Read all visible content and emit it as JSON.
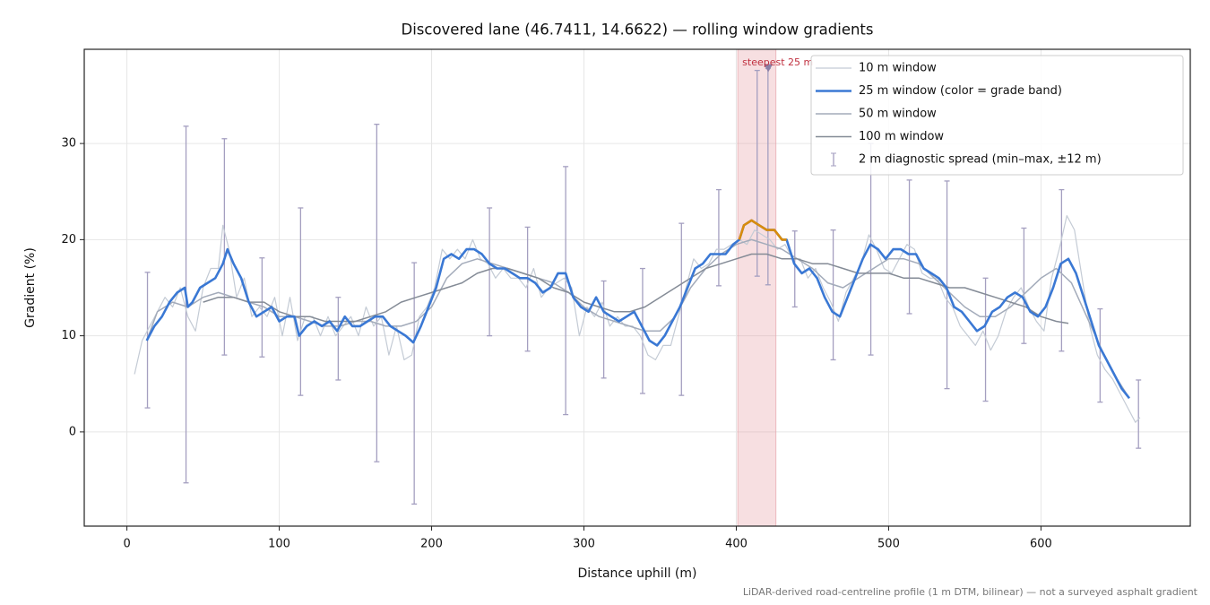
{
  "chart_data": {
    "type": "line",
    "title": "Discovered lane (46.7411, 14.6622) — rolling window gradients",
    "xlabel": "Distance uphill (m)",
    "ylabel": "Gradient (%)",
    "footnote": "LiDAR-derived road-centreline profile (1 m DTM, bilinear) — not a surveyed asphalt gradient",
    "xlim": [
      -28,
      698
    ],
    "ylim": [
      -9.8,
      39.8
    ],
    "xticks": [
      0,
      100,
      200,
      300,
      400,
      500,
      600
    ],
    "yticks": [
      0,
      10,
      20,
      30
    ],
    "grid": true,
    "legend": "upper right",
    "highlight": {
      "label": "steepest 25 m",
      "x0": 401,
      "x1": 426,
      "marker_x": 421,
      "marker_y": 37.8,
      "color": "#e7a3aa",
      "text_color": "#c0303f",
      "marker_color": "#8a7fa6"
    },
    "grade_band": {
      "threshold": 20,
      "color": "#d98c0c"
    },
    "series": [
      {
        "name": "10 m window",
        "color": "#c4cbd5",
        "linewidth": 1.2,
        "x": [
          5,
          10,
          15,
          20,
          25,
          30,
          35,
          40,
          45,
          50,
          55,
          60,
          63,
          67,
          72,
          77,
          82,
          87,
          92,
          97,
          102,
          107,
          112,
          117,
          122,
          127,
          132,
          137,
          142,
          147,
          152,
          157,
          162,
          167,
          172,
          177,
          182,
          187,
          192,
          197,
          202,
          207,
          212,
          217,
          222,
          227,
          232,
          237,
          242,
          247,
          252,
          257,
          262,
          267,
          272,
          277,
          282,
          287,
          292,
          297,
          302,
          307,
          312,
          317,
          322,
          327,
          332,
          337,
          342,
          347,
          352,
          357,
          362,
          367,
          372,
          377,
          382,
          387,
          392,
          397,
          402,
          407,
          412,
          417,
          422,
          427,
          432,
          437,
          442,
          447,
          452,
          457,
          462,
          467,
          472,
          477,
          482,
          487,
          492,
          497,
          502,
          507,
          512,
          517,
          522,
          527,
          532,
          537,
          542,
          547,
          552,
          557,
          562,
          567,
          572,
          577,
          582,
          587,
          592,
          597,
          602,
          607,
          612,
          617,
          622,
          627,
          632,
          637,
          642,
          647,
          652,
          657,
          662,
          665
        ],
        "values": [
          6,
          9.5,
          11,
          12.5,
          14,
          13,
          15,
          12,
          10.5,
          15,
          17,
          17,
          21.5,
          19,
          14,
          16,
          12,
          13,
          12,
          14,
          10,
          14,
          9.5,
          12,
          12,
          10,
          12,
          10,
          11,
          12,
          10,
          13,
          11,
          12,
          8,
          11,
          7.5,
          8,
          12,
          13,
          15,
          19,
          18,
          19,
          18,
          20,
          18,
          17.5,
          16,
          17,
          16,
          16,
          15,
          17,
          14,
          15,
          15.5,
          16,
          15,
          10,
          13,
          12,
          13.5,
          11,
          12,
          11,
          11,
          10,
          8,
          7.5,
          9,
          9,
          12,
          15,
          18,
          17,
          17.5,
          19,
          19,
          19.5,
          20,
          19.5,
          21,
          20.5,
          20,
          19,
          19.5,
          18,
          18,
          16,
          17,
          15,
          13.5,
          11.5,
          14.5,
          16,
          17.5,
          20.5,
          19,
          17,
          16.5,
          18,
          19.5,
          19,
          16.5,
          16,
          16,
          14,
          13,
          11,
          10,
          9,
          10.5,
          8.5,
          10,
          12.5,
          14,
          15,
          13,
          11.5,
          10.5,
          16,
          19,
          22.5,
          21,
          16,
          11,
          8,
          6.5,
          5.5,
          4,
          2.5,
          1,
          1.5
        ]
      },
      {
        "name": "25 m window (color = grade band)",
        "color": "#3a78d4",
        "linewidth": 2.6,
        "x": [
          13,
          18,
          23,
          28,
          33,
          38,
          40,
          43,
          48,
          53,
          58,
          63,
          66,
          70,
          75,
          80,
          85,
          90,
          95,
          100,
          105,
          110,
          113,
          118,
          123,
          128,
          133,
          138,
          143,
          148,
          153,
          158,
          163,
          168,
          173,
          178,
          183,
          188,
          193,
          198,
          203,
          208,
          213,
          218,
          223,
          228,
          233,
          238,
          243,
          248,
          253,
          258,
          263,
          268,
          273,
          278,
          283,
          288,
          293,
          298,
          303,
          308,
          313,
          318,
          323,
          328,
          333,
          338,
          343,
          348,
          353,
          358,
          363,
          368,
          373,
          378,
          383,
          388,
          393,
          398,
          402,
          405,
          410,
          415,
          420,
          425,
          430,
          433,
          438,
          443,
          448,
          453,
          458,
          463,
          468,
          473,
          478,
          483,
          488,
          493,
          498,
          503,
          508,
          513,
          518,
          523,
          528,
          533,
          538,
          543,
          548,
          553,
          558,
          563,
          568,
          573,
          578,
          583,
          588,
          593,
          598,
          603,
          608,
          613,
          618,
          623,
          628,
          633,
          638,
          643,
          648,
          653,
          658
        ],
        "values": [
          9.5,
          11,
          12,
          13.5,
          14.5,
          15,
          13,
          13.5,
          15,
          15.5,
          16,
          17.5,
          19,
          17.5,
          16,
          13.5,
          12,
          12.5,
          13,
          11.5,
          12,
          12,
          10,
          11,
          11.5,
          11,
          11.5,
          10.5,
          12,
          11,
          11,
          11.5,
          12,
          12,
          11,
          10.5,
          10,
          9.3,
          11,
          13,
          15,
          18,
          18.5,
          18,
          19,
          19,
          18.5,
          17.5,
          17,
          17,
          16.5,
          16,
          16,
          15.5,
          14.5,
          15,
          16.5,
          16.5,
          14,
          13,
          12.5,
          14,
          12.5,
          12,
          11.5,
          12,
          12.5,
          11,
          9.5,
          9,
          10,
          11.5,
          13,
          15,
          17,
          17.5,
          18.5,
          18.5,
          18.5,
          19.5,
          20,
          21.5,
          22,
          21.5,
          21,
          21,
          20,
          20,
          17.5,
          16.5,
          17,
          16,
          14,
          12.5,
          12,
          14,
          16,
          18,
          19.5,
          19,
          18,
          19,
          19,
          18.5,
          18.5,
          17,
          16.5,
          16,
          15,
          13,
          12.5,
          11.5,
          10.5,
          11,
          12.5,
          13,
          14,
          14.5,
          14,
          12.5,
          12,
          13,
          15,
          17.5,
          18,
          16.5,
          14,
          11.5,
          9,
          7.5,
          6,
          4.5,
          3.5
        ]
      },
      {
        "name": "50 m window",
        "color": "#a3abba",
        "linewidth": 1.5,
        "x": [
          13,
          20,
          30,
          40,
          50,
          60,
          70,
          80,
          90,
          100,
          110,
          120,
          130,
          140,
          150,
          160,
          170,
          180,
          190,
          200,
          210,
          220,
          230,
          240,
          250,
          260,
          270,
          280,
          290,
          300,
          310,
          320,
          330,
          340,
          350,
          360,
          370,
          380,
          390,
          400,
          410,
          420,
          430,
          440,
          450,
          460,
          470,
          480,
          490,
          500,
          510,
          520,
          530,
          540,
          550,
          560,
          570,
          580,
          590,
          600,
          610,
          620,
          630,
          640,
          650,
          658
        ],
        "values": [
          9.5,
          12.5,
          13.5,
          13,
          14,
          14.5,
          14,
          13.5,
          13,
          12,
          12,
          11.5,
          11,
          11,
          11.5,
          11.5,
          11,
          11,
          11.5,
          13,
          16,
          17.5,
          18,
          17.5,
          17,
          16.5,
          16,
          15.5,
          14.5,
          13,
          12,
          11.5,
          11,
          10.5,
          10.5,
          12,
          15,
          17,
          18.5,
          19.5,
          20,
          19.5,
          19,
          18,
          17,
          15.5,
          15,
          16,
          17,
          18,
          18,
          17.5,
          16,
          14.5,
          13,
          12,
          12,
          13,
          14.5,
          16,
          17,
          15.5,
          12,
          8.5,
          5.5,
          3.5
        ]
      },
      {
        "name": "100 m window",
        "color": "#848b96",
        "linewidth": 1.5,
        "x": [
          50,
          60,
          70,
          80,
          90,
          100,
          110,
          120,
          130,
          140,
          150,
          160,
          170,
          180,
          190,
          200,
          210,
          220,
          230,
          240,
          250,
          260,
          270,
          280,
          290,
          300,
          310,
          320,
          330,
          340,
          350,
          360,
          370,
          380,
          390,
          400,
          410,
          420,
          430,
          440,
          450,
          460,
          470,
          480,
          490,
          500,
          510,
          520,
          530,
          540,
          550,
          560,
          570,
          580,
          590,
          600,
          610,
          618
        ],
        "values": [
          13.5,
          14,
          14,
          13.5,
          13.5,
          12.5,
          12,
          12,
          11.5,
          11.5,
          11.5,
          12,
          12.5,
          13.5,
          14,
          14.5,
          15,
          15.5,
          16.5,
          17,
          17,
          16.5,
          16,
          15,
          14.5,
          13.5,
          13,
          12.5,
          12.5,
          13,
          14,
          15,
          16,
          17,
          17.5,
          18,
          18.5,
          18.5,
          18,
          18,
          17.5,
          17.5,
          17,
          16.5,
          16.5,
          16.5,
          16,
          16,
          15.5,
          15,
          15,
          14.5,
          14,
          13.5,
          13,
          12,
          11.5,
          11.3
        ]
      }
    ],
    "error_bars": {
      "name": "2 m diagnostic spread (min–max, ±12 m)",
      "color": "#a49fc0",
      "x": [
        13.5,
        38.8,
        64,
        88.7,
        114,
        138.7,
        164,
        188.6,
        238,
        263,
        288,
        313,
        338.5,
        364,
        388.5,
        413.7,
        420.8,
        438.4,
        463.6,
        488.3,
        513.6,
        538.3,
        563.6,
        588.8,
        613.5,
        638.8,
        664
      ],
      "min": [
        2.5,
        -5.3,
        8,
        7.8,
        3.8,
        5.4,
        -3.1,
        -7.5,
        10,
        8.4,
        1.8,
        5.6,
        4,
        3.8,
        15.2,
        16.2,
        15.3,
        13,
        7.5,
        8,
        12.3,
        4.5,
        3.2,
        9.2,
        8.4,
        3.1,
        -1.7
      ],
      "max": [
        16.6,
        31.8,
        30.5,
        18.1,
        23.3,
        14,
        32,
        17.6,
        23.3,
        21.3,
        27.6,
        15.7,
        17,
        21.7,
        25.2,
        37.6,
        37.8,
        20.9,
        21,
        30,
        26.2,
        26.1,
        16,
        21.2,
        25.2,
        12.8,
        5.4
      ]
    }
  }
}
